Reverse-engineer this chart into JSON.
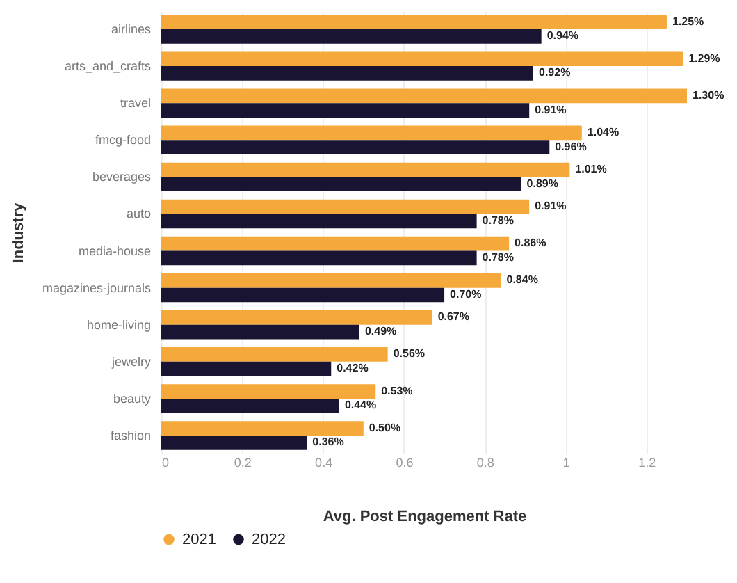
{
  "chart_data": {
    "type": "bar",
    "orientation": "horizontal",
    "xlabel": "Avg. Post Engagement Rate",
    "ylabel": "Industry",
    "categories": [
      "airlines",
      "arts_and_crafts",
      "travel",
      "fmcg-food",
      "beverages",
      "auto",
      "media-house",
      "magazines-journals",
      "home-living",
      "jewelry",
      "beauty",
      "fashion"
    ],
    "series": [
      {
        "name": "2021",
        "color": "#f5a93b",
        "values": [
          1.25,
          1.29,
          1.3,
          1.04,
          1.01,
          0.91,
          0.86,
          0.84,
          0.67,
          0.56,
          0.53,
          0.5
        ],
        "value_labels": [
          "1.25%",
          "1.29%",
          "1.30%",
          "1.04%",
          "1.01%",
          "0.91%",
          "0.86%",
          "0.84%",
          "0.67%",
          "0.56%",
          "0.53%",
          "0.50%"
        ]
      },
      {
        "name": "2022",
        "color": "#1a1433",
        "values": [
          0.94,
          0.92,
          0.91,
          0.96,
          0.89,
          0.78,
          0.78,
          0.7,
          0.49,
          0.42,
          0.44,
          0.36
        ],
        "value_labels": [
          "0.94%",
          "0.92%",
          "0.91%",
          "0.96%",
          "0.89%",
          "0.78%",
          "0.78%",
          "0.70%",
          "0.49%",
          "0.42%",
          "0.44%",
          "0.36%"
        ]
      }
    ],
    "xlim": [
      0,
      1.3
    ],
    "xticks": [
      0,
      0.2,
      0.4,
      0.6,
      0.8,
      1,
      1.2
    ],
    "grid": "x",
    "legend": "bottom"
  }
}
